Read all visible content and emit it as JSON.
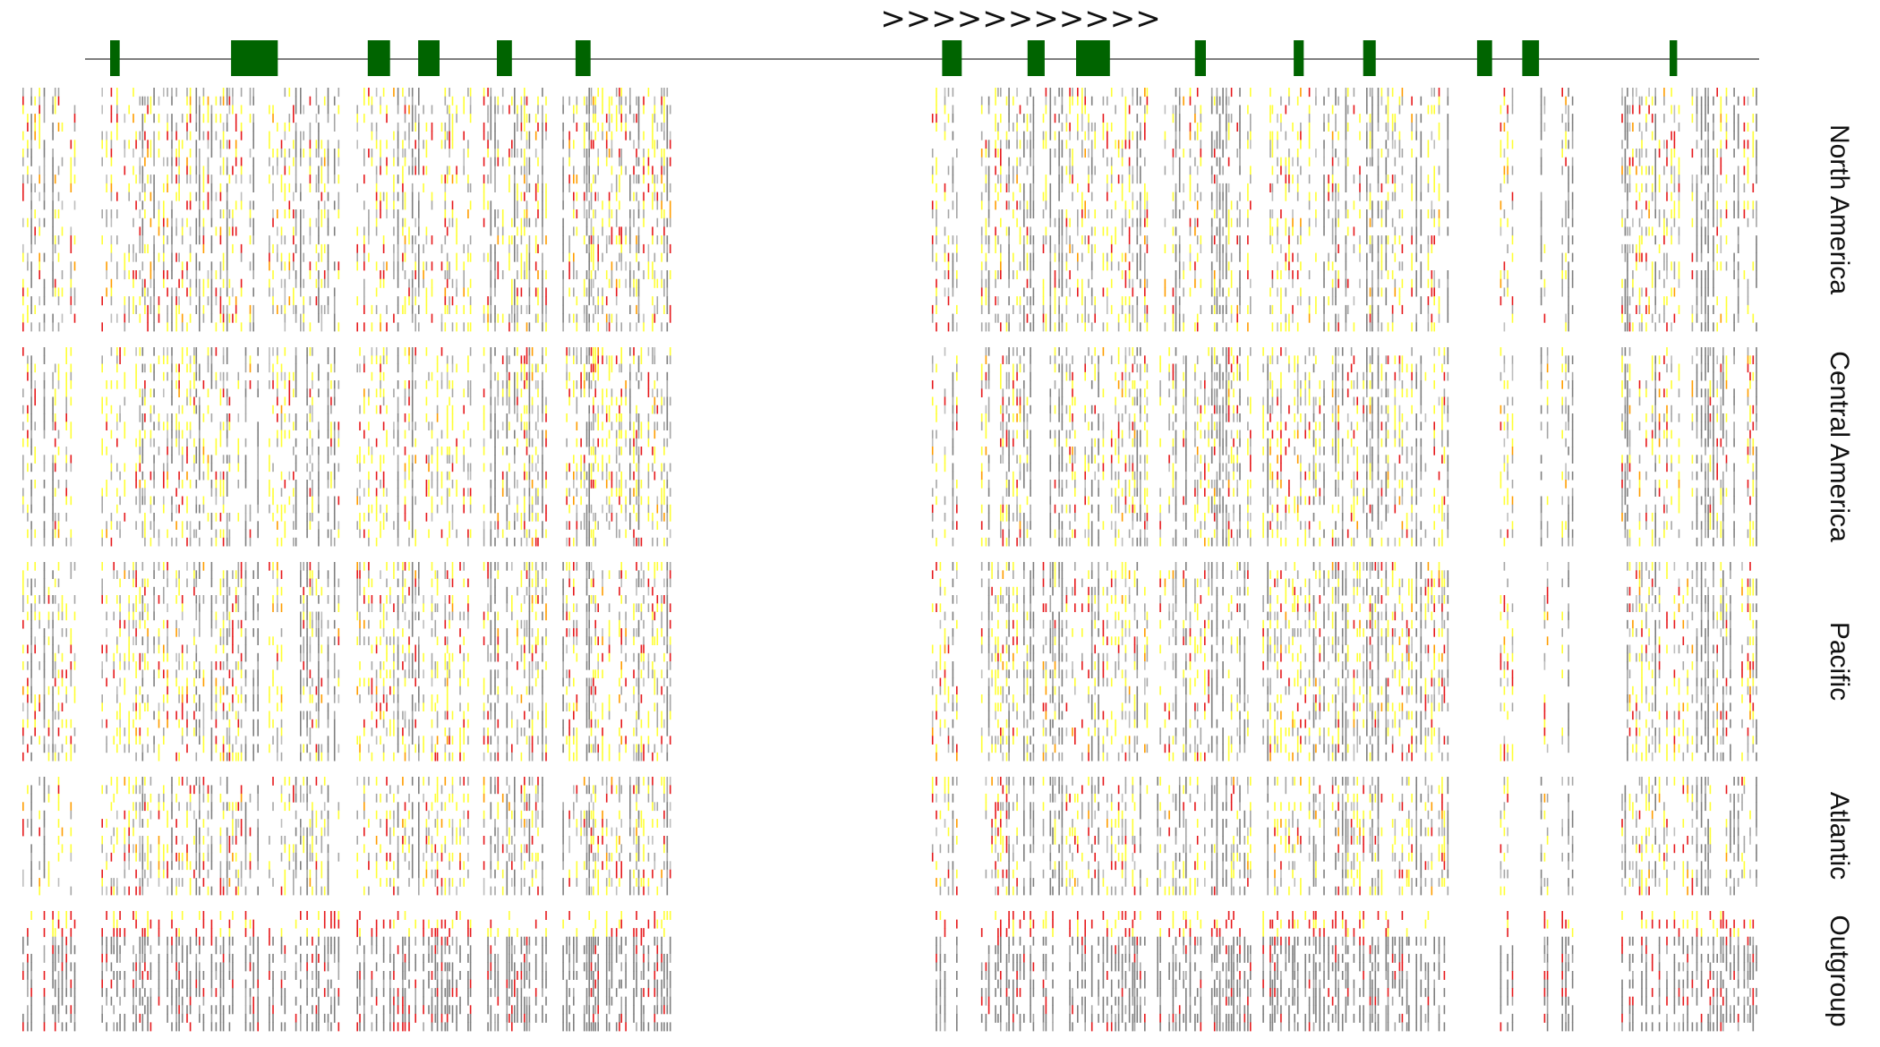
{
  "chart_data": {
    "type": "heatmap",
    "description_visible": false,
    "colors": {
      "exon": "#006400",
      "gene_line": "#555555",
      "states": [
        "#7f7f7f",
        "#a6a6a6",
        "#e6191c",
        "#ffff33",
        "#ff9d00",
        "#bdbdbd"
      ]
    },
    "strand": ">>>>>>>>>>>",
    "exons": [
      [
        0.015,
        0.0207
      ],
      [
        0.0872,
        0.1151
      ],
      [
        0.1689,
        0.1822
      ],
      [
        0.199,
        0.2118
      ],
      [
        0.246,
        0.255
      ],
      [
        0.293,
        0.302
      ],
      [
        0.512,
        0.5237
      ],
      [
        0.563,
        0.5732
      ],
      [
        0.592,
        0.6122
      ],
      [
        0.663,
        0.6695
      ],
      [
        0.722,
        0.728
      ],
      [
        0.7635,
        0.771
      ],
      [
        0.8315,
        0.8405
      ],
      [
        0.8585,
        0.8685
      ],
      [
        0.9465,
        0.951
      ]
    ],
    "site_blocks": [
      [
        0.0,
        0.03
      ],
      [
        0.045,
        0.135
      ],
      [
        0.14,
        0.18
      ],
      [
        0.19,
        0.255
      ],
      [
        0.262,
        0.298
      ],
      [
        0.307,
        0.368
      ],
      [
        0.517,
        0.532
      ],
      [
        0.545,
        0.575
      ],
      [
        0.58,
        0.64
      ],
      [
        0.645,
        0.7
      ],
      [
        0.705,
        0.76
      ],
      [
        0.762,
        0.81
      ],
      [
        0.84,
        0.848
      ],
      [
        0.863,
        0.867
      ],
      [
        0.875,
        0.883
      ],
      [
        0.909,
        0.987
      ]
    ],
    "groups": [
      {
        "name": "North America",
        "rows": 28,
        "seed": 11
      },
      {
        "name": "Central America",
        "rows": 24,
        "seed": 23
      },
      {
        "name": "Pacific",
        "rows": 24,
        "seed": 37
      },
      {
        "name": "Atlantic",
        "rows": 14,
        "seed": 51
      },
      {
        "name": "Outgroup",
        "rows": 14,
        "seed": 73
      }
    ]
  }
}
